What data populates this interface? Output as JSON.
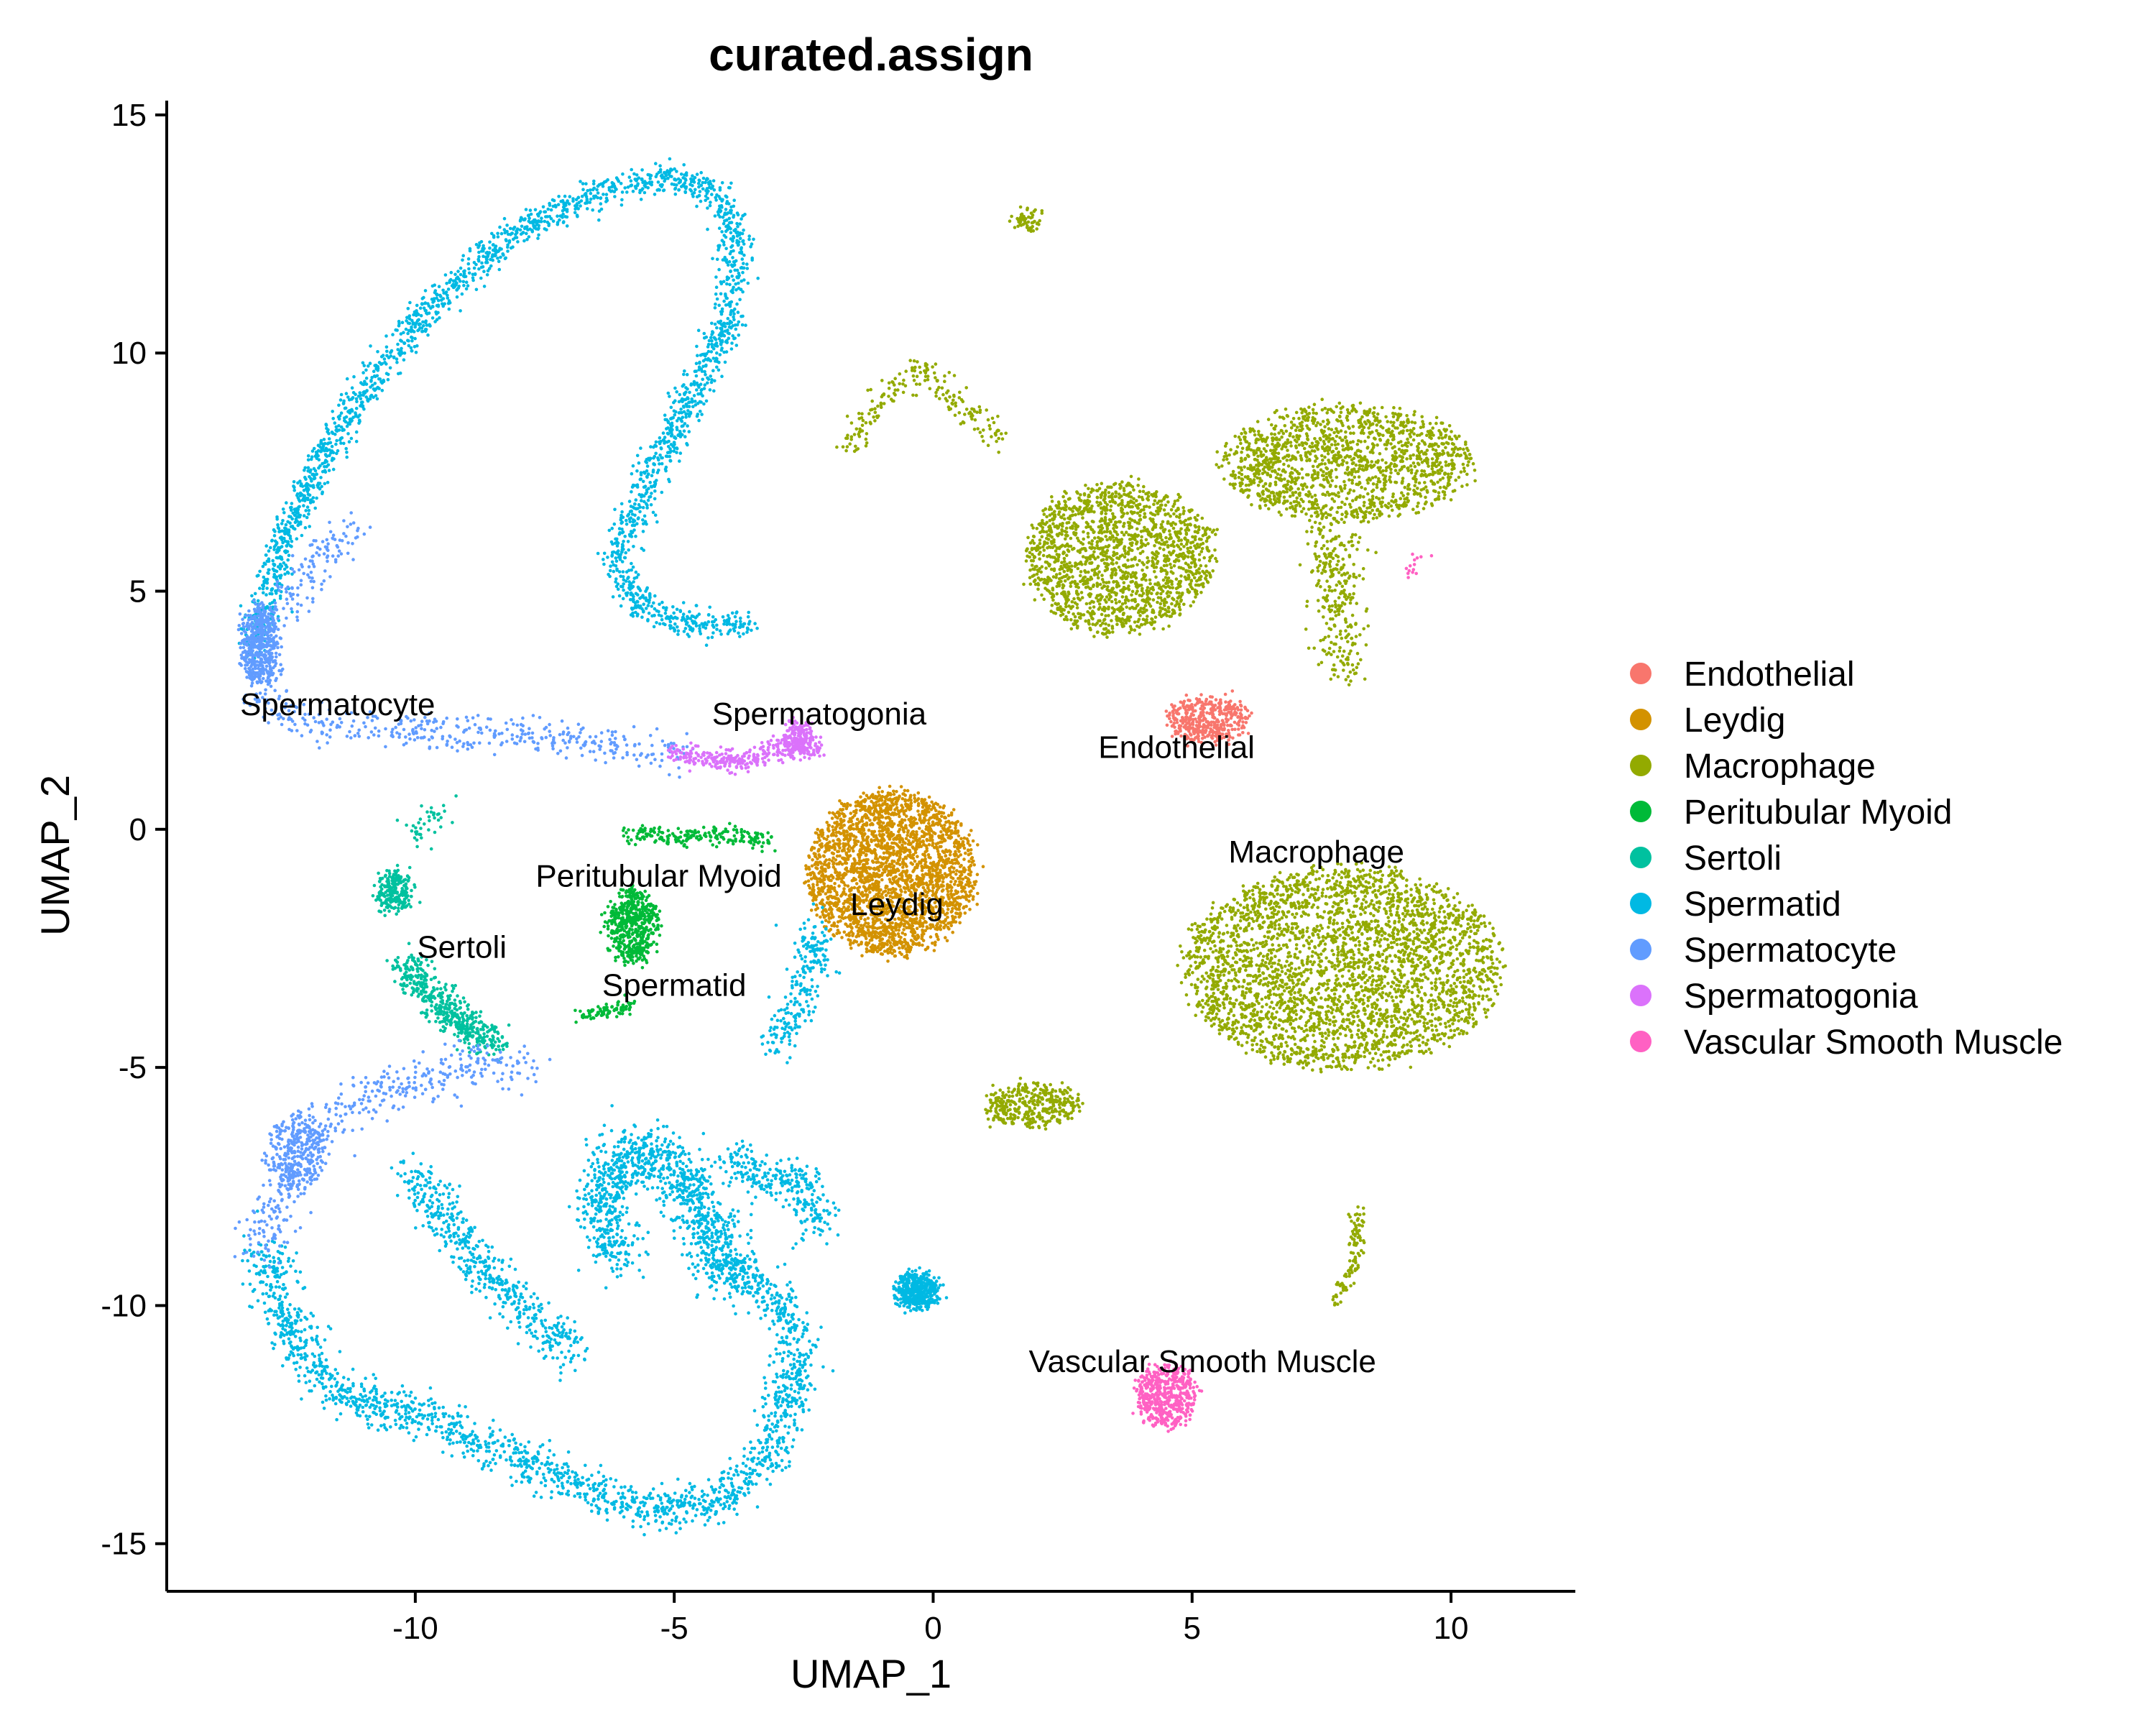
{
  "chart_data": {
    "type": "scatter",
    "title": "curated.assign",
    "xlabel": "UMAP_1",
    "ylabel": "UMAP_2",
    "xlim": [
      -14.8,
      12.4
    ],
    "ylim": [
      -16.0,
      15.3
    ],
    "x_ticks": [
      -10,
      -5,
      0,
      5,
      10
    ],
    "x_tick_labels": [
      "-10",
      "-5",
      "0",
      "5",
      "10"
    ],
    "y_ticks": [
      -15,
      -10,
      -5,
      0,
      5,
      10,
      15
    ],
    "y_tick_labels": [
      "-15",
      "-10",
      "-5",
      "0",
      "5",
      "10",
      "15"
    ],
    "grid": false,
    "legend_position": "right",
    "series": [
      {
        "name": "Endothelial",
        "color": "#F8766D"
      },
      {
        "name": "Leydig",
        "color": "#D39200"
      },
      {
        "name": "Macrophage",
        "color": "#93AA00"
      },
      {
        "name": "Peritubular Myoid",
        "color": "#00BA38"
      },
      {
        "name": "Sertoli",
        "color": "#00C19F"
      },
      {
        "name": "Spermatid",
        "color": "#00B9E3"
      },
      {
        "name": "Spermatocyte",
        "color": "#619CFF"
      },
      {
        "name": "Spermatogonia",
        "color": "#DB72FB"
      },
      {
        "name": "Vascular Smooth Muscle",
        "color": "#FF61C3"
      }
    ],
    "cluster_labels": [
      {
        "text": "Spermatocyte",
        "x": -11.5,
        "y": 2.4
      },
      {
        "text": "Spermatogonia",
        "x": -2.2,
        "y": 2.2
      },
      {
        "text": "Endothelial",
        "x": 4.7,
        "y": 1.5
      },
      {
        "text": "Macrophage",
        "x": 7.4,
        "y": -0.7
      },
      {
        "text": "Peritubular Myoid",
        "x": -5.3,
        "y": -1.2
      },
      {
        "text": "Leydig",
        "x": -0.7,
        "y": -1.8
      },
      {
        "text": "Sertoli",
        "x": -9.1,
        "y": -2.7
      },
      {
        "text": "Spermatid",
        "x": -5.0,
        "y": -3.5
      },
      {
        "text": "Vascular Smooth Muscle",
        "x": 5.2,
        "y": -11.4
      }
    ],
    "clusters": [
      {
        "series": "Spermatid",
        "shape": "path",
        "n": 2400,
        "spread": 0.16,
        "pts": [
          [
            -13.1,
            3.8
          ],
          [
            -12.6,
            6.0
          ],
          [
            -11.7,
            8.0
          ],
          [
            -10.6,
            9.8
          ],
          [
            -9.3,
            11.4
          ],
          [
            -8.0,
            12.6
          ],
          [
            -6.4,
            13.4
          ],
          [
            -5.0,
            13.7
          ],
          [
            -4.2,
            13.4
          ],
          [
            -3.8,
            12.5
          ],
          [
            -3.9,
            11.0
          ],
          [
            -4.6,
            9.2
          ],
          [
            -5.6,
            7.2
          ],
          [
            -6.1,
            5.5
          ],
          [
            -5.6,
            4.6
          ],
          [
            -4.5,
            4.3
          ],
          [
            -3.5,
            4.3
          ]
        ]
      },
      {
        "series": "Spermatocyte",
        "shape": "path",
        "n": 600,
        "spread": 0.2,
        "pts": [
          [
            -11.2,
            6.5
          ],
          [
            -12.3,
            5.0
          ],
          [
            -13.1,
            3.8
          ],
          [
            -12.8,
            2.5
          ],
          [
            -11.5,
            2.1
          ],
          [
            -10.0,
            2.1
          ],
          [
            -8.0,
            2.0
          ],
          [
            -6.0,
            1.8
          ],
          [
            -4.8,
            1.6
          ]
        ]
      },
      {
        "series": "Spermatocyte",
        "shape": "blob",
        "n": 420,
        "cx": -13.0,
        "cy": 3.9,
        "rx": 0.35,
        "ry": 0.8
      },
      {
        "series": "Spermatogonia",
        "shape": "path",
        "n": 320,
        "spread": 0.12,
        "pts": [
          [
            -5.0,
            1.6
          ],
          [
            -4.0,
            1.4
          ],
          [
            -3.2,
            1.6
          ],
          [
            -2.6,
            1.8
          ],
          [
            -2.2,
            1.6
          ]
        ]
      },
      {
        "series": "Spermatogonia",
        "shape": "blob",
        "n": 160,
        "cx": -2.6,
        "cy": 1.9,
        "rx": 0.25,
        "ry": 0.35
      },
      {
        "series": "Leydig",
        "shape": "blob",
        "n": 2600,
        "cx": -0.8,
        "cy": -0.9,
        "rx": 1.6,
        "ry": 1.7
      },
      {
        "series": "Peritubular Myoid",
        "shape": "blob",
        "n": 520,
        "cx": -5.8,
        "cy": -2.0,
        "rx": 0.45,
        "ry": 0.8
      },
      {
        "series": "Peritubular Myoid",
        "shape": "path",
        "n": 200,
        "spread": 0.1,
        "pts": [
          [
            -5.9,
            -0.1
          ],
          [
            -4.8,
            -0.2
          ],
          [
            -3.8,
            -0.1
          ],
          [
            -3.2,
            -0.3
          ]
        ]
      },
      {
        "series": "Peritubular Myoid",
        "shape": "path",
        "n": 80,
        "spread": 0.08,
        "pts": [
          [
            -6.8,
            -3.9
          ],
          [
            -5.8,
            -3.7
          ]
        ]
      },
      {
        "series": "Sertoli",
        "shape": "path",
        "n": 480,
        "spread": 0.18,
        "pts": [
          [
            -10.2,
            -2.8
          ],
          [
            -9.7,
            -3.5
          ],
          [
            -9.1,
            -4.1
          ],
          [
            -8.4,
            -4.5
          ]
        ]
      },
      {
        "series": "Sertoli",
        "shape": "blob",
        "n": 220,
        "cx": -10.4,
        "cy": -1.3,
        "rx": 0.3,
        "ry": 0.45
      },
      {
        "series": "Sertoli",
        "shape": "path",
        "n": 40,
        "spread": 0.15,
        "pts": [
          [
            -9.9,
            -0.3
          ],
          [
            -9.6,
            0.6
          ]
        ]
      },
      {
        "series": "Spermatid",
        "shape": "path",
        "n": 220,
        "spread": 0.2,
        "pts": [
          [
            -3.0,
            -4.6
          ],
          [
            -2.7,
            -3.8
          ],
          [
            -2.4,
            -3.0
          ],
          [
            -2.3,
            -2.0
          ]
        ]
      },
      {
        "series": "Spermatid",
        "shape": "path",
        "n": 1700,
        "spread": 0.22,
        "pts": [
          [
            -12.9,
            -8.8
          ],
          [
            -12.5,
            -10.5
          ],
          [
            -11.5,
            -11.8
          ],
          [
            -9.5,
            -12.5
          ],
          [
            -7.5,
            -13.5
          ],
          [
            -5.5,
            -14.3
          ],
          [
            -4.0,
            -14.1
          ],
          [
            -3.1,
            -13.0
          ],
          [
            -2.6,
            -11.2
          ],
          [
            -2.9,
            -10.0
          ],
          [
            -3.8,
            -9.2
          ]
        ]
      },
      {
        "series": "Spermatid",
        "shape": "path",
        "n": 1100,
        "spread": 0.28,
        "pts": [
          [
            -6.2,
            -9.0
          ],
          [
            -6.4,
            -7.6
          ],
          [
            -5.7,
            -6.7
          ],
          [
            -4.9,
            -7.1
          ],
          [
            -4.5,
            -8.0
          ],
          [
            -3.9,
            -9.5
          ]
        ]
      },
      {
        "series": "Spermatid",
        "shape": "path",
        "n": 500,
        "spread": 0.22,
        "pts": [
          [
            -10.1,
            -7.2
          ],
          [
            -9.5,
            -8.0
          ],
          [
            -8.6,
            -9.4
          ],
          [
            -7.5,
            -10.5
          ],
          [
            -7.0,
            -11.0
          ]
        ]
      },
      {
        "series": "Spermatid",
        "shape": "path",
        "n": 280,
        "spread": 0.2,
        "pts": [
          [
            -3.8,
            -6.8
          ],
          [
            -3.3,
            -7.5
          ],
          [
            -2.6,
            -7.2
          ],
          [
            -2.2,
            -8.5
          ]
        ]
      },
      {
        "series": "Spermatid",
        "shape": "blob",
        "n": 420,
        "cx": -0.3,
        "cy": -9.7,
        "rx": 0.4,
        "ry": 0.35
      },
      {
        "series": "Spermatocyte",
        "shape": "path",
        "n": 450,
        "spread": 0.25,
        "pts": [
          [
            -13.0,
            -8.9
          ],
          [
            -12.6,
            -7.5
          ],
          [
            -12.0,
            -6.3
          ],
          [
            -11.0,
            -5.6
          ],
          [
            -10.0,
            -5.3
          ],
          [
            -9.0,
            -5.0
          ],
          [
            -7.7,
            -4.9
          ]
        ]
      },
      {
        "series": "Spermatocyte",
        "shape": "blob",
        "n": 260,
        "cx": -12.3,
        "cy": -6.8,
        "rx": 0.5,
        "ry": 0.8
      },
      {
        "series": "Macrophage",
        "shape": "blob",
        "n": 1700,
        "cx": 3.6,
        "cy": 5.7,
        "rx": 1.8,
        "ry": 1.6
      },
      {
        "series": "Macrophage",
        "shape": "blob",
        "n": 1500,
        "cx": 8.0,
        "cy": 7.7,
        "rx": 2.4,
        "ry": 1.2
      },
      {
        "series": "Macrophage",
        "shape": "path",
        "n": 300,
        "spread": 0.25,
        "pts": [
          [
            7.6,
            6.5
          ],
          [
            7.8,
            5.0
          ],
          [
            7.9,
            3.3
          ]
        ]
      },
      {
        "series": "Macrophage",
        "shape": "blob",
        "n": 3200,
        "cx": 7.9,
        "cy": -2.9,
        "rx": 3.1,
        "ry": 2.1
      },
      {
        "series": "Macrophage",
        "shape": "path",
        "n": 200,
        "spread": 0.15,
        "pts": [
          [
            -1.7,
            8.0
          ],
          [
            -0.8,
            9.2
          ],
          [
            -0.2,
            9.7
          ],
          [
            0.6,
            8.8
          ],
          [
            1.3,
            8.2
          ]
        ]
      },
      {
        "series": "Macrophage",
        "shape": "blob",
        "n": 350,
        "cx": 1.9,
        "cy": -5.8,
        "rx": 0.9,
        "ry": 0.45
      },
      {
        "series": "Macrophage",
        "shape": "path",
        "n": 100,
        "spread": 0.08,
        "pts": [
          [
            7.7,
            -9.9
          ],
          [
            8.1,
            -9.3
          ],
          [
            8.2,
            -8.0
          ]
        ]
      },
      {
        "series": "Macrophage",
        "shape": "blob",
        "n": 60,
        "cx": 1.8,
        "cy": 12.8,
        "rx": 0.2,
        "ry": 0.15
      },
      {
        "series": "Endothelial",
        "shape": "blob",
        "n": 420,
        "cx": 5.3,
        "cy": 2.3,
        "rx": 0.8,
        "ry": 0.45
      },
      {
        "series": "Vascular Smooth Muscle",
        "shape": "blob",
        "n": 520,
        "cx": 4.5,
        "cy": -11.9,
        "rx": 0.55,
        "ry": 0.65
      },
      {
        "series": "Vascular Smooth Muscle",
        "shape": "blob",
        "n": 14,
        "cx": 9.3,
        "cy": 5.5,
        "rx": 0.05,
        "ry": 0.2
      }
    ]
  }
}
